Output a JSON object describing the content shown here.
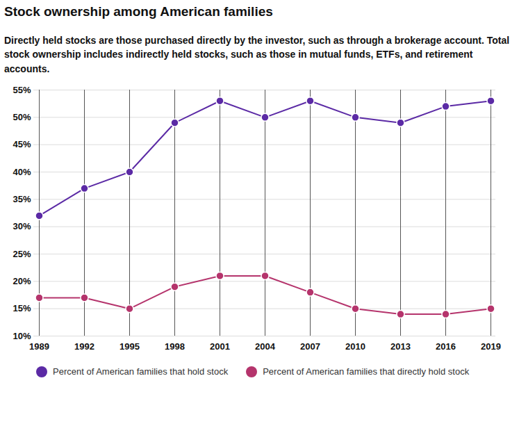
{
  "chart_data": {
    "type": "line",
    "title": "Stock ownership among American families",
    "subtitle": "Directly held stocks are those purchased directly by the investor, such as through a brokerage account. Total stock ownership includes indirectly held stocks, such as those in mutual funds, ETFs, and retirement accounts.",
    "categories": [
      "1989",
      "1992",
      "1995",
      "1998",
      "2001",
      "2004",
      "2007",
      "2010",
      "2013",
      "2016",
      "2019"
    ],
    "series": [
      {
        "name": "Percent of American families that hold stock",
        "color": "#5b2aa5",
        "marker": "circle",
        "values": [
          32,
          37,
          40,
          49,
          53,
          50,
          53,
          50,
          49,
          52,
          53
        ]
      },
      {
        "name": "Percent of American families that directly hold stock",
        "color": "#b5346c",
        "marker": "circle",
        "values": [
          17,
          17,
          15,
          19,
          21,
          21,
          18,
          15,
          14,
          14,
          15
        ]
      }
    ],
    "ylim": [
      10,
      55
    ],
    "yticks": [
      {
        "value": 10,
        "label": "10%"
      },
      {
        "value": 15,
        "label": "15%"
      },
      {
        "value": 20,
        "label": "20%"
      },
      {
        "value": 25,
        "label": "25%"
      },
      {
        "value": 30,
        "label": "30%"
      },
      {
        "value": 35,
        "label": "35%"
      },
      {
        "value": 40,
        "label": "40%"
      },
      {
        "value": 45,
        "label": "45%"
      },
      {
        "value": 50,
        "label": "50%"
      },
      {
        "value": 55,
        "label": "55%"
      }
    ],
    "grid": true,
    "legend": "bottom"
  }
}
